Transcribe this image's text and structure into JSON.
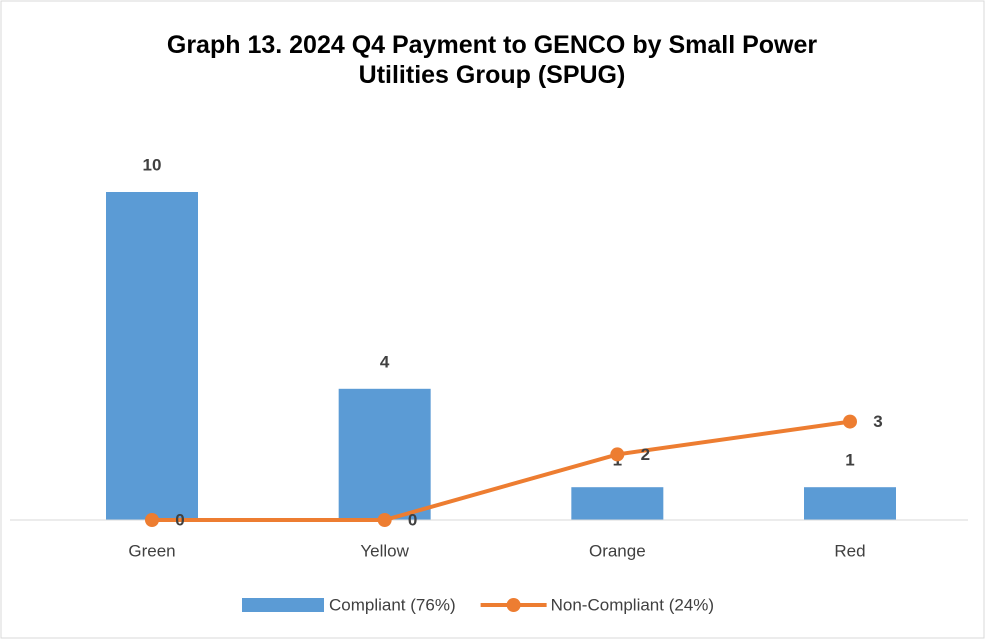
{
  "chart_data": {
    "type": "bar-line",
    "title": "Graph 13. 2024 Q4 Payment to GENCO by Small Power Utilities Group (SPUG)",
    "categories": [
      "Green",
      "Yellow",
      "Orange",
      "Red"
    ],
    "series": [
      {
        "name": "Compliant (76%)",
        "type": "bar",
        "color": "#5b9bd5",
        "values": [
          10,
          4,
          1,
          1
        ]
      },
      {
        "name": "Non-Compliant (24%)",
        "type": "line",
        "color": "#ed7d31",
        "values": [
          0,
          0,
          2,
          3
        ]
      }
    ],
    "legend": "bottom"
  }
}
